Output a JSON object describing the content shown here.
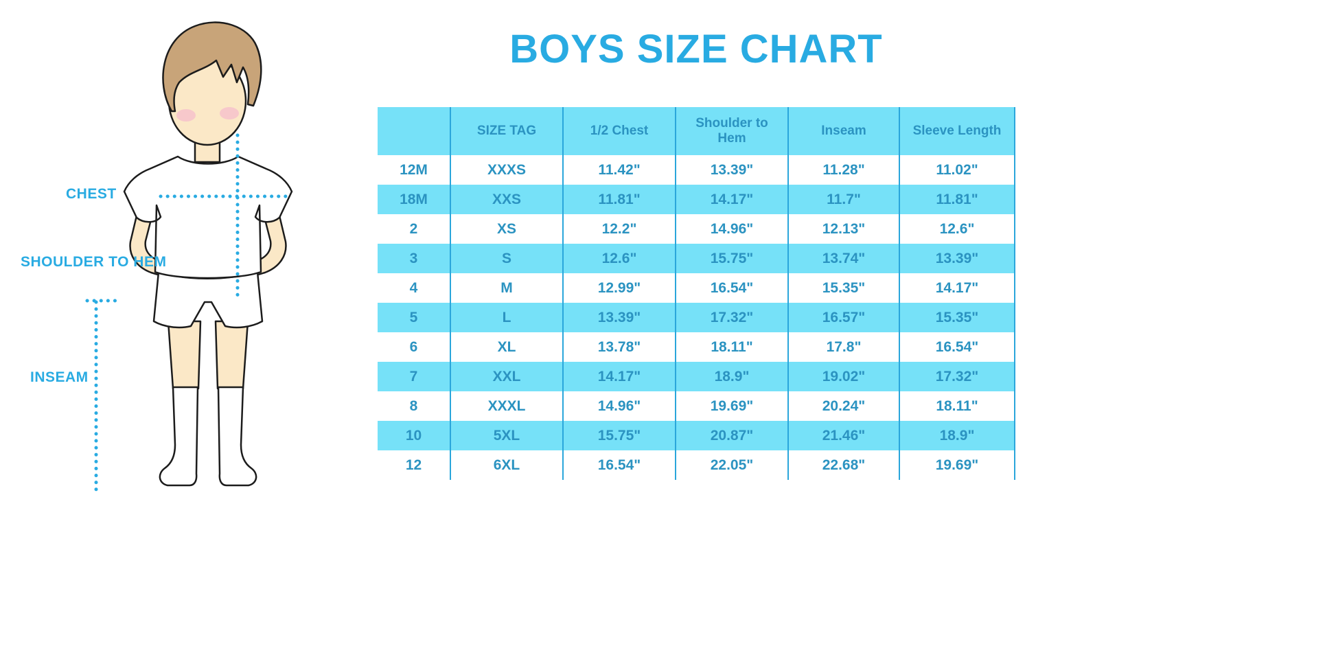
{
  "page": {
    "title": "BOYS SIZE CHART"
  },
  "diagram": {
    "label_chest": "CHEST",
    "label_shoulder_to_hem": "SHOULDER TO HEM",
    "label_inseam": "INSEAM"
  },
  "chart_data": {
    "type": "table",
    "title": "BOYS SIZE CHART",
    "columns": [
      "",
      "SIZE TAG",
      "1/2 Chest",
      "Shoulder to Hem",
      "Inseam",
      "Sleeve Length"
    ],
    "rows": [
      [
        "12M",
        "XXXS",
        "11.42\"",
        "13.39\"",
        "11.28\"",
        "11.02\""
      ],
      [
        "18M",
        "XXS",
        "11.81\"",
        "14.17\"",
        "11.7\"",
        "11.81\""
      ],
      [
        "2",
        "XS",
        "12.2\"",
        "14.96\"",
        "12.13\"",
        "12.6\""
      ],
      [
        "3",
        "S",
        "12.6\"",
        "15.75\"",
        "13.74\"",
        "13.39\""
      ],
      [
        "4",
        "M",
        "12.99\"",
        "16.54\"",
        "15.35\"",
        "14.17\""
      ],
      [
        "5",
        "L",
        "13.39\"",
        "17.32\"",
        "16.57\"",
        "15.35\""
      ],
      [
        "6",
        "XL",
        "13.78\"",
        "18.11\"",
        "17.8\"",
        "16.54\""
      ],
      [
        "7",
        "XXL",
        "14.17\"",
        "18.9\"",
        "19.02\"",
        "17.32\""
      ],
      [
        "8",
        "XXXL",
        "14.96\"",
        "19.69\"",
        "20.24\"",
        "18.11\""
      ],
      [
        "10",
        "5XL",
        "15.75\"",
        "20.87\"",
        "21.46\"",
        "18.9\""
      ],
      [
        "12",
        "6XL",
        "16.54\"",
        "22.05\"",
        "22.68\"",
        "19.69\""
      ]
    ],
    "units": "inches",
    "row_stripe_pattern": "white / light-cyan alternating, header light-cyan"
  },
  "colors": {
    "accent": "#29ABE2",
    "table_row_fill": "#76E1F8",
    "table_text": "#2B93C1",
    "table_grid": "#2AA6DB",
    "skin": "#FBE8C7",
    "hair": "#C8A479",
    "cheek": "#F6BECD",
    "outline": "#1C1C1C"
  }
}
